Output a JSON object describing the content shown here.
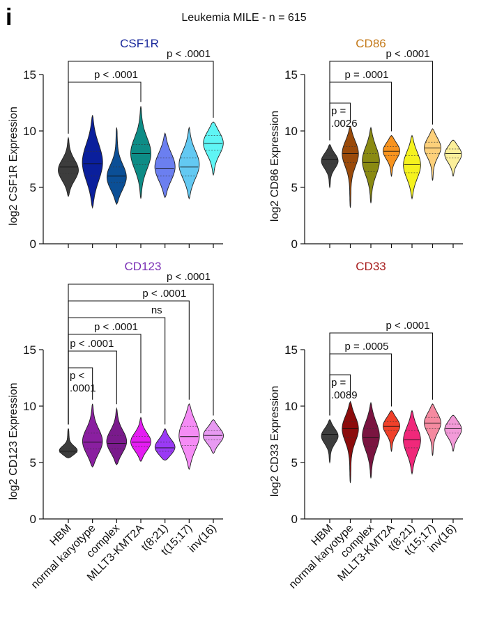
{
  "figure": {
    "panel_letter": "i",
    "title": "Leukemia MILE - n = 615"
  },
  "chart_data": [
    {
      "type": "violin",
      "title": "CSF1R",
      "title_color": "#1b2a9c",
      "ylabel": "log2 CSF1R Expression",
      "xlabel": "",
      "ylim": [
        0,
        15
      ],
      "yticks": [
        0,
        5,
        10,
        15
      ],
      "grid": false,
      "categories": [
        "HBM",
        "normal karyotype",
        "complex",
        "MLLT3-KMT2A",
        "t(8;21)",
        "t(15;17)",
        "inv(16)"
      ],
      "colors": [
        "#3d3d3d",
        "#0a1f9c",
        "#0b4f96",
        "#0d8c86",
        "#6b7ff0",
        "#63c9f2",
        "#5ff5f5"
      ],
      "violins": [
        {
          "min": 4.2,
          "max": 9.4,
          "mode": 6.5,
          "median": 6.8,
          "q1": 6.2,
          "q3": 7.3
        },
        {
          "min": 3.2,
          "max": 11.4,
          "mode": 7.2,
          "median": 7.1,
          "q1": 6.0,
          "q3": 8.2
        },
        {
          "min": 3.5,
          "max": 10.3,
          "mode": 5.8,
          "median": 6.0,
          "q1": 5.4,
          "q3": 6.8
        },
        {
          "min": 4.0,
          "max": 12.2,
          "mode": 8.0,
          "median": 8.0,
          "q1": 7.0,
          "q3": 8.8
        },
        {
          "min": 4.1,
          "max": 9.8,
          "mode": 6.8,
          "median": 6.7,
          "q1": 6.0,
          "q3": 7.6
        },
        {
          "min": 4.0,
          "max": 10.3,
          "mode": 7.0,
          "median": 6.8,
          "q1": 6.0,
          "q3": 7.6
        },
        {
          "min": 6.1,
          "max": 10.8,
          "mode": 9.0,
          "median": 8.9,
          "q1": 8.3,
          "q3": 9.6
        }
      ],
      "comparisons": [
        {
          "from": 0,
          "to": 3,
          "label": "p < .0001"
        },
        {
          "from": 0,
          "to": 6,
          "label": "p < .0001"
        }
      ]
    },
    {
      "type": "violin",
      "title": "CD86",
      "title_color": "#c47a1a",
      "ylabel": "log2 CD86 Expression",
      "xlabel": "",
      "ylim": [
        0,
        15
      ],
      "yticks": [
        0,
        5,
        10,
        15
      ],
      "grid": false,
      "categories": [
        "HBM",
        "normal karyotype",
        "complex",
        "MLLT3-KMT2A",
        "t(8;21)",
        "t(15;17)",
        "inv(16)"
      ],
      "colors": [
        "#3d3d3d",
        "#9a4a0a",
        "#8a8a12",
        "#f7931e",
        "#f5f21e",
        "#fdd07a",
        "#fbef9a"
      ],
      "violins": [
        {
          "min": 5.0,
          "max": 8.8,
          "mode": 7.4,
          "median": 7.5,
          "q1": 7.1,
          "q3": 7.8
        },
        {
          "min": 3.2,
          "max": 10.4,
          "mode": 8.1,
          "median": 8.0,
          "q1": 7.2,
          "q3": 8.6
        },
        {
          "min": 3.6,
          "max": 10.3,
          "mode": 7.4,
          "median": 7.2,
          "q1": 6.4,
          "q3": 8.0
        },
        {
          "min": 6.0,
          "max": 9.6,
          "mode": 8.3,
          "median": 8.2,
          "q1": 7.8,
          "q3": 8.6
        },
        {
          "min": 4.0,
          "max": 9.6,
          "mode": 7.0,
          "median": 7.0,
          "q1": 6.3,
          "q3": 7.8
        },
        {
          "min": 5.6,
          "max": 10.2,
          "mode": 8.6,
          "median": 8.5,
          "q1": 8.0,
          "q3": 9.0
        },
        {
          "min": 6.0,
          "max": 9.2,
          "mode": 8.0,
          "median": 8.0,
          "q1": 7.6,
          "q3": 8.4
        }
      ],
      "comparisons": [
        {
          "from": 0,
          "to": 1,
          "label": "p =\n.0026"
        },
        {
          "from": 0,
          "to": 3,
          "label": "p = .0001"
        },
        {
          "from": 0,
          "to": 5,
          "label": "p < .0001"
        }
      ]
    },
    {
      "type": "violin",
      "title": "CD123",
      "title_color": "#7a2fb5",
      "ylabel": "log2 CD123 Expression",
      "xlabel": "",
      "ylim": [
        0,
        15
      ],
      "yticks": [
        0,
        5,
        10,
        15
      ],
      "grid": false,
      "categories": [
        "HBM",
        "normal karyotype",
        "complex",
        "MLLT3-KMT2A",
        "t(8;21)",
        "t(15;17)",
        "inv(16)"
      ],
      "colors": [
        "#3d3d3d",
        "#8a1fa0",
        "#7a1a8c",
        "#e41cf2",
        "#9a3af5",
        "#f58cf5",
        "#e89af2"
      ],
      "violins": [
        {
          "min": 5.4,
          "max": 8.0,
          "mode": 6.0,
          "median": 6.0,
          "q1": 5.9,
          "q3": 6.2
        },
        {
          "min": 4.6,
          "max": 10.2,
          "mode": 6.8,
          "median": 6.8,
          "q1": 6.2,
          "q3": 7.6
        },
        {
          "min": 4.8,
          "max": 9.8,
          "mode": 6.8,
          "median": 6.7,
          "q1": 6.2,
          "q3": 7.4
        },
        {
          "min": 5.1,
          "max": 9.0,
          "mode": 6.8,
          "median": 6.8,
          "q1": 6.4,
          "q3": 7.3
        },
        {
          "min": 5.2,
          "max": 8.0,
          "mode": 6.3,
          "median": 6.3,
          "q1": 6.0,
          "q3": 6.8
        },
        {
          "min": 4.4,
          "max": 10.2,
          "mode": 7.4,
          "median": 7.3,
          "q1": 6.5,
          "q3": 8.2
        },
        {
          "min": 5.8,
          "max": 8.8,
          "mode": 7.4,
          "median": 7.4,
          "q1": 7.0,
          "q3": 7.8
        }
      ],
      "comparisons": [
        {
          "from": 0,
          "to": 1,
          "label": "p <\n.0001"
        },
        {
          "from": 0,
          "to": 2,
          "label": "p < .0001"
        },
        {
          "from": 0,
          "to": 3,
          "label": "p < .0001"
        },
        {
          "from": 0,
          "to": 4,
          "label": "ns"
        },
        {
          "from": 0,
          "to": 5,
          "label": "p < .0001"
        },
        {
          "from": 0,
          "to": 6,
          "label": "p < .0001"
        }
      ]
    },
    {
      "type": "violin",
      "title": "CD33",
      "title_color": "#a81e1e",
      "ylabel": "log2 CD33 Expression",
      "xlabel": "",
      "ylim": [
        0,
        15
      ],
      "yticks": [
        0,
        5,
        10,
        15
      ],
      "grid": false,
      "categories": [
        "HBM",
        "normal karyotype",
        "complex",
        "MLLT3-KMT2A",
        "t(8;21)",
        "t(15;17)",
        "inv(16)"
      ],
      "colors": [
        "#3d3d3d",
        "#8c0c0c",
        "#7a1440",
        "#f0402a",
        "#f0287a",
        "#f58aa0",
        "#f29ad8"
      ],
      "violins": [
        {
          "min": 5.0,
          "max": 8.8,
          "mode": 7.4,
          "median": 7.5,
          "q1": 7.1,
          "q3": 7.8
        },
        {
          "min": 3.2,
          "max": 10.4,
          "mode": 8.1,
          "median": 8.0,
          "q1": 7.2,
          "q3": 8.6
        },
        {
          "min": 3.6,
          "max": 10.3,
          "mode": 7.4,
          "median": 7.2,
          "q1": 6.4,
          "q3": 8.0
        },
        {
          "min": 6.0,
          "max": 9.6,
          "mode": 8.3,
          "median": 8.2,
          "q1": 7.8,
          "q3": 8.6
        },
        {
          "min": 4.0,
          "max": 9.6,
          "mode": 7.0,
          "median": 7.0,
          "q1": 6.3,
          "q3": 7.8
        },
        {
          "min": 5.6,
          "max": 10.2,
          "mode": 8.6,
          "median": 8.5,
          "q1": 8.0,
          "q3": 9.0
        },
        {
          "min": 6.0,
          "max": 9.2,
          "mode": 8.0,
          "median": 8.0,
          "q1": 7.6,
          "q3": 8.4
        }
      ],
      "comparisons": [
        {
          "from": 0,
          "to": 1,
          "label": "p =\n.0089"
        },
        {
          "from": 0,
          "to": 3,
          "label": "p = .0005"
        },
        {
          "from": 0,
          "to": 5,
          "label": "p < .0001"
        }
      ]
    }
  ]
}
